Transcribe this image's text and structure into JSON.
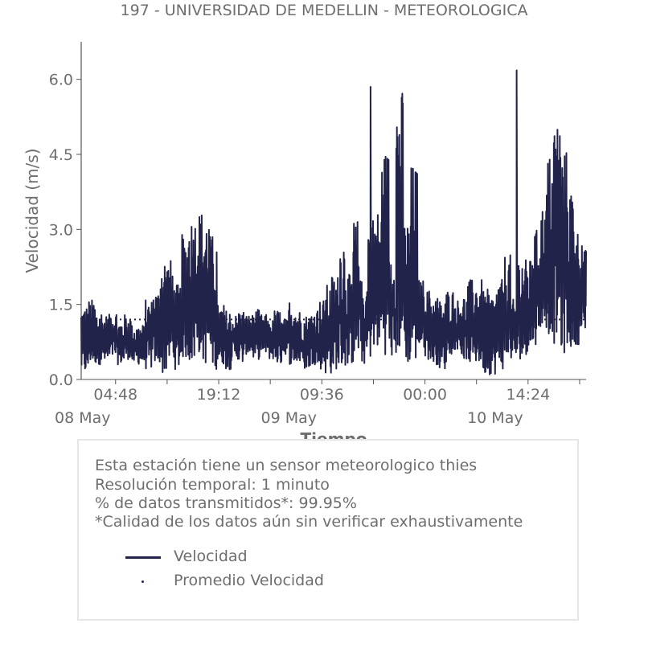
{
  "title": "197 - UNIVERSIDAD DE MEDELLIN - METEOROLOGICA",
  "chart_data": {
    "type": "line",
    "title": "197 - UNIVERSIDAD DE MEDELLIN - METEOROLOGICA",
    "xlabel": "Tiempo",
    "ylabel": "Velocidad (m/s)",
    "ylim": [
      0,
      6.75
    ],
    "xlim": [
      "2024-05-08 00:00",
      "2024-05-10 22:30"
    ],
    "y_ticks": [
      "0.0",
      "1.5",
      "3.0",
      "4.5",
      "6.0"
    ],
    "x_ticks": [
      {
        "value": "2024-05-08 04:48",
        "label": "04:48",
        "sublabel": "08 May"
      },
      {
        "value": "2024-05-08 19:12",
        "label": "19:12",
        "sublabel": ""
      },
      {
        "value": "2024-05-09 09:36",
        "label": "09:36",
        "sublabel": "09 May"
      },
      {
        "value": "2024-05-10 00:00",
        "label": "00:00",
        "sublabel": ""
      },
      {
        "value": "2024-05-10 14:24",
        "label": "14:24",
        "sublabel": "10 May"
      }
    ],
    "grid": false,
    "series": [
      {
        "name": "Velocidad",
        "color": "#22234a",
        "style": "solid",
        "x": [
          "2024-05-08 00:00",
          "2024-05-08 01:00",
          "2024-05-08 02:00",
          "2024-05-08 03:00",
          "2024-05-08 04:00",
          "2024-05-08 05:00",
          "2024-05-08 06:00",
          "2024-05-08 07:00",
          "2024-05-08 08:00",
          "2024-05-08 09:00",
          "2024-05-08 10:00",
          "2024-05-08 11:00",
          "2024-05-08 12:00",
          "2024-05-08 13:00",
          "2024-05-08 14:00",
          "2024-05-08 15:00",
          "2024-05-08 16:00",
          "2024-05-08 17:00",
          "2024-05-08 18:00",
          "2024-05-08 19:00",
          "2024-05-08 20:00",
          "2024-05-08 21:00",
          "2024-05-08 22:00",
          "2024-05-08 23:00",
          "2024-05-09 00:00",
          "2024-05-09 01:00",
          "2024-05-09 02:00",
          "2024-05-09 03:00",
          "2024-05-09 04:00",
          "2024-05-09 05:00",
          "2024-05-09 06:00",
          "2024-05-09 07:00",
          "2024-05-09 08:00",
          "2024-05-09 09:00",
          "2024-05-09 10:00",
          "2024-05-09 11:00",
          "2024-05-09 12:00",
          "2024-05-09 13:00",
          "2024-05-09 14:00",
          "2024-05-09 15:00",
          "2024-05-09 16:00",
          "2024-05-09 17:00",
          "2024-05-09 18:00",
          "2024-05-09 19:00",
          "2024-05-09 20:00",
          "2024-05-09 21:00",
          "2024-05-09 22:00",
          "2024-05-09 23:00",
          "2024-05-10 00:00",
          "2024-05-10 01:00",
          "2024-05-10 02:00",
          "2024-05-10 03:00",
          "2024-05-10 04:00",
          "2024-05-10 05:00",
          "2024-05-10 06:00",
          "2024-05-10 07:00",
          "2024-05-10 08:00",
          "2024-05-10 09:00",
          "2024-05-10 10:00",
          "2024-05-10 11:00",
          "2024-05-10 12:00",
          "2024-05-10 13:00",
          "2024-05-10 14:00",
          "2024-05-10 15:00",
          "2024-05-10 16:00",
          "2024-05-10 17:00",
          "2024-05-10 18:00",
          "2024-05-10 19:00",
          "2024-05-10 20:00",
          "2024-05-10 21:00",
          "2024-05-10 22:00"
        ],
        "low": [
          0.1,
          0.3,
          0.3,
          0.3,
          0.4,
          0.3,
          0.4,
          0.3,
          0.3,
          0.2,
          0.3,
          0.1,
          0.3,
          0.2,
          0.4,
          0.3,
          0.5,
          0.3,
          0.2,
          0.3,
          0.2,
          0.4,
          0.3,
          0.5,
          0.4,
          0.5,
          0.4,
          0.3,
          0.5,
          0.3,
          0.3,
          0.2,
          0.3,
          0.2,
          0.1,
          0.2,
          0.2,
          0.3,
          0.4,
          0.3,
          0.4,
          0.6,
          0.5,
          0.4,
          0.5,
          0.3,
          0.3,
          0.6,
          0.4,
          0.3,
          0.2,
          0.5,
          0.6,
          0.4,
          0.3,
          0.3,
          0.1,
          0.1,
          0.2,
          0.3,
          0.4,
          0.4,
          0.5,
          0.7,
          1.0,
          0.9,
          0.7,
          0.5,
          0.6,
          0.7,
          0.8
        ],
        "high": [
          1.5,
          1.6,
          1.4,
          1.3,
          1.4,
          1.2,
          1.3,
          1.1,
          1.1,
          1.6,
          1.8,
          2.5,
          2.4,
          1.9,
          2.9,
          3.3,
          3.4,
          3.3,
          2.9,
          1.5,
          1.4,
          1.3,
          1.4,
          1.3,
          1.4,
          1.3,
          1.2,
          1.4,
          1.2,
          1.6,
          1.4,
          1.3,
          1.4,
          1.6,
          1.9,
          2.1,
          2.9,
          2.1,
          3.2,
          2.0,
          3.3,
          3.4,
          4.6,
          2.7,
          5.8,
          3.2,
          4.3,
          2.0,
          1.8,
          1.7,
          1.6,
          1.8,
          1.6,
          1.7,
          2.0,
          2.0,
          1.8,
          1.7,
          2.0,
          2.5,
          1.6,
          2.5,
          2.4,
          3.0,
          3.5,
          4.5,
          5.3,
          4.6,
          3.9,
          3.0,
          2.6
        ]
      },
      {
        "name": "Promedio Velocidad",
        "color": "#22234a",
        "style": "dotted",
        "x": [
          "2024-05-08 00:00",
          "2024-05-10 22:30"
        ],
        "values": [
          1.2,
          1.2
        ]
      }
    ],
    "peaks": [
      {
        "x": "2024-05-09 16:24",
        "y": 5.85
      },
      {
        "x": "2024-05-10 12:48",
        "y": 6.18
      }
    ]
  },
  "info": {
    "line1": "Esta estación tiene un sensor meteorologico thies",
    "line2": "Resolución temporal: 1 minuto",
    "line3": "% de datos transmitidos*: 99.95%",
    "line4": "*Calidad de los datos aún sin verificar exhaustivamente"
  },
  "legend": {
    "item1": "Velocidad",
    "item2": "Promedio Velocidad"
  }
}
